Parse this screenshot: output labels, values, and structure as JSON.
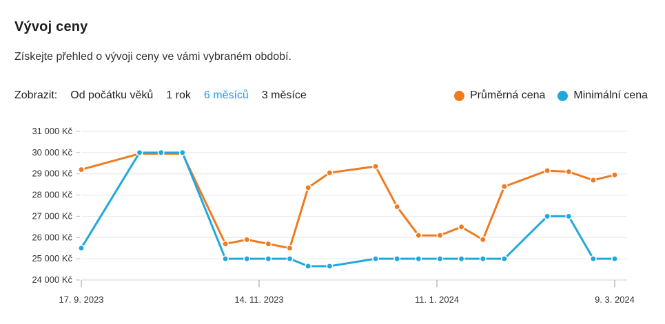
{
  "header": {
    "title": "Vývoj ceny",
    "subtitle": "Získejte přehled o vývoji ceny ve vámi vybraném období."
  },
  "controls": {
    "label": "Zobrazit:",
    "options": [
      "Od počátku věků",
      "1 rok",
      "6 měsíců",
      "3 měsíce"
    ],
    "active": "6 měsíců"
  },
  "colors": {
    "avg": "#f07a1e",
    "min": "#20a8dc",
    "active": "#1e9ce8"
  },
  "chart_data": {
    "type": "line",
    "x_ticks": [
      "17. 9. 2023",
      "14. 11. 2023",
      "11. 1. 2024",
      "9. 3. 2024"
    ],
    "x_tick_dates": [
      "2023-09-17",
      "2023-11-14",
      "2024-01-11",
      "2024-03-09"
    ],
    "y_ticks": [
      "24 000 Kč",
      "25 000 Kč",
      "26 000 Kč",
      "27 000 Kč",
      "28 000 Kč",
      "29 000 Kč",
      "30 000 Kč",
      "31 000 Kč"
    ],
    "ylim": [
      24000,
      31000
    ],
    "grid": true,
    "legend_position": "top-right",
    "series": [
      {
        "name": "Průměrná cena",
        "color": "#f07a1e",
        "x": [
          "2023-09-17",
          "2023-10-06",
          "2023-10-13",
          "2023-10-20",
          "2023-11-03",
          "2023-11-10",
          "2023-11-17",
          "2023-11-24",
          "2023-11-30",
          "2023-12-07",
          "2023-12-22",
          "2023-12-29",
          "2024-01-05",
          "2024-01-12",
          "2024-01-19",
          "2024-01-26",
          "2024-02-02",
          "2024-02-16",
          "2024-02-23",
          "2024-03-02",
          "2024-03-09"
        ],
        "values": [
          29200,
          29950,
          29950,
          29950,
          25700,
          25900,
          25700,
          25500,
          28350,
          29050,
          29350,
          27450,
          26100,
          26100,
          26500,
          25900,
          28400,
          29150,
          29100,
          28700,
          28950
        ]
      },
      {
        "name": "Minimální cena",
        "color": "#20a8dc",
        "x": [
          "2023-09-17",
          "2023-10-06",
          "2023-10-13",
          "2023-10-20",
          "2023-11-03",
          "2023-11-10",
          "2023-11-17",
          "2023-11-24",
          "2023-11-30",
          "2023-12-07",
          "2023-12-22",
          "2023-12-29",
          "2024-01-05",
          "2024-01-12",
          "2024-01-19",
          "2024-01-26",
          "2024-02-02",
          "2024-02-16",
          "2024-02-23",
          "2024-03-02",
          "2024-03-09"
        ],
        "values": [
          25500,
          30000,
          30000,
          30000,
          25000,
          25000,
          25000,
          25000,
          24650,
          24650,
          25000,
          25000,
          25000,
          25000,
          25000,
          25000,
          25000,
          27000,
          27000,
          25000,
          25000
        ]
      }
    ]
  }
}
